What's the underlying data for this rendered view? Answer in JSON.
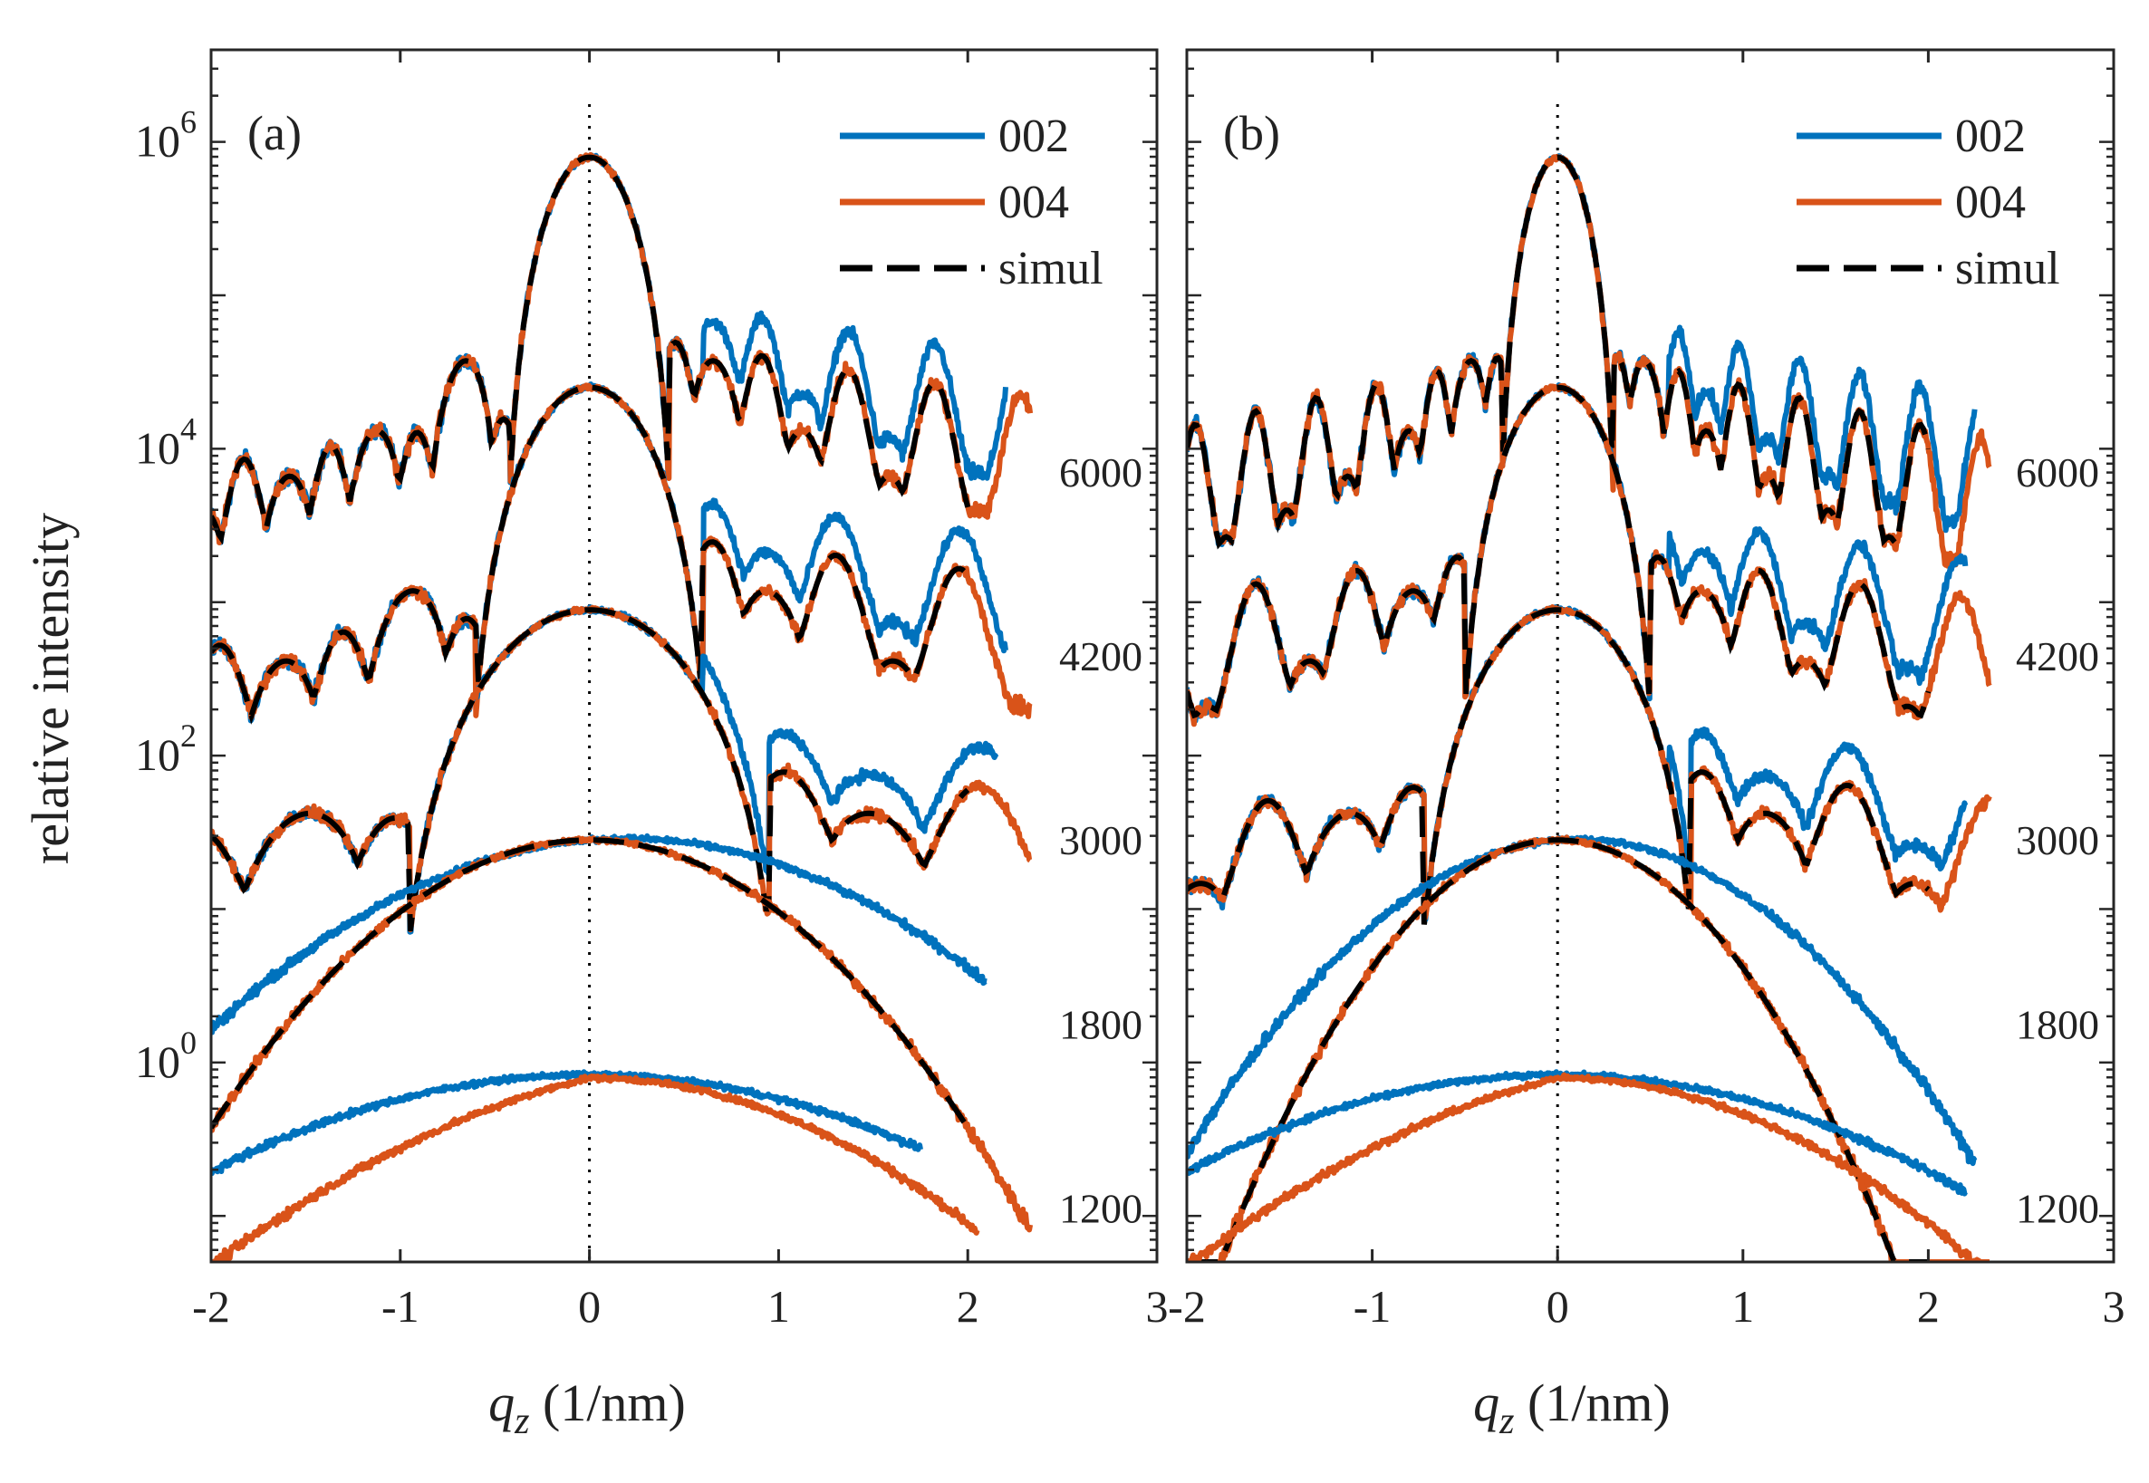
{
  "colors": {
    "c002": "#0072BD",
    "c004": "#D95319",
    "simul": "#000000",
    "axis": "#262626"
  },
  "ylabel": "relative intensity",
  "xlabel_var": "q",
  "xlabel_sub": "z",
  "xlabel_unit": " (1/nm)",
  "legend": [
    "002",
    "004",
    "simul"
  ],
  "chart_data": [
    {
      "type": "line",
      "panel_label": "(a)",
      "xlim": [
        -2,
        3
      ],
      "ylim_log10": [
        -1.3,
        6.6
      ],
      "xticks": [
        "-2",
        "-1",
        "0",
        "1",
        "2",
        "3"
      ],
      "yticks": [
        {
          "base": "10",
          "exp": "0"
        },
        {
          "base": "10",
          "exp": "2"
        },
        {
          "base": "10",
          "exp": "4"
        },
        {
          "base": "10",
          "exp": "6"
        }
      ],
      "temperature_labels": [
        {
          "text": "6000",
          "log10_y": 3.85
        },
        {
          "text": "4200",
          "log10_y": 2.65
        },
        {
          "text": "3000",
          "log10_y": 1.45
        },
        {
          "text": "1800",
          "log10_y": 0.25
        },
        {
          "text": "1200",
          "log10_y": -0.95
        }
      ],
      "curve_families": [
        {
          "temperature": "6000",
          "peak_log10": 5.9,
          "width_1_over_nm": 0.42,
          "side_max_log10": [
            4.2,
            4.7
          ],
          "x_range_002": [
            -2,
            2.2
          ],
          "x_range_004": [
            -2,
            2.33
          ]
        },
        {
          "temperature": "4200",
          "peak_log10": 4.4,
          "width_1_over_nm": 0.6,
          "side_max_log10": [
            2.9,
            3.4
          ],
          "x_range_002": [
            -2,
            2.2
          ],
          "x_range_004": [
            -2,
            2.33
          ]
        },
        {
          "temperature": "3000",
          "peak_log10": 2.95,
          "width_1_over_nm": 0.95,
          "side_max_log10": [
            1.6,
            1.9
          ],
          "x_range_002": [
            -2,
            2.15
          ],
          "x_range_004": [
            -2,
            2.33
          ]
        },
        {
          "temperature": "1800",
          "peak_log10": 1.45,
          "width_1_over_nm": 1.6,
          "x_range_002": [
            -2,
            2.1
          ],
          "x_range_004": [
            -2,
            2.33
          ]
        },
        {
          "temperature": "1200",
          "peak_log10": -0.1,
          "width_1_over_nm": 2.6,
          "x_range_002": [
            -2,
            1.75
          ],
          "x_range_004": [
            -2,
            2.05
          ],
          "no_simul": true
        }
      ]
    },
    {
      "type": "line",
      "panel_label": "(b)",
      "xlim": [
        -2,
        3
      ],
      "ylim_log10": [
        -1.3,
        6.6
      ],
      "xticks": [
        "-2",
        "-1",
        "0",
        "1",
        "2",
        "3"
      ],
      "yticks": [],
      "temperature_labels": [
        {
          "text": "6000",
          "log10_y": 3.85
        },
        {
          "text": "4200",
          "log10_y": 2.65
        },
        {
          "text": "3000",
          "log10_y": 1.45
        },
        {
          "text": "1800",
          "log10_y": 0.25
        },
        {
          "text": "1200",
          "log10_y": -0.95
        }
      ],
      "curve_families": [
        {
          "temperature": "6000",
          "peak_log10": 5.9,
          "width_1_over_nm": 0.3,
          "side_max_log10": [
            4.6,
            4.6
          ],
          "x_range_002": [
            -2,
            2.25
          ],
          "x_range_004": [
            -2,
            2.33
          ]
        },
        {
          "temperature": "4200",
          "peak_log10": 4.4,
          "width_1_over_nm": 0.5,
          "side_max_log10": [
            3.3,
            3.3
          ],
          "x_range_002": [
            -2,
            2.2
          ],
          "x_range_004": [
            -2,
            2.33
          ]
        },
        {
          "temperature": "3000",
          "peak_log10": 2.95,
          "width_1_over_nm": 0.72,
          "side_max_log10": [
            1.8,
            1.9
          ],
          "x_range_002": [
            -2,
            2.2
          ],
          "x_range_004": [
            -2,
            2.33
          ]
        },
        {
          "temperature": "1800",
          "peak_log10": 1.45,
          "width_1_over_nm": 1.2,
          "x_range_002": [
            -2,
            2.25
          ],
          "x_range_004": [
            -2,
            2.33
          ]
        },
        {
          "temperature": "1200",
          "peak_log10": -0.1,
          "width_1_over_nm": 2.6,
          "x_range_002": [
            -2,
            2.2
          ],
          "x_range_004": [
            -2,
            2.33
          ],
          "no_simul": true
        }
      ]
    }
  ]
}
